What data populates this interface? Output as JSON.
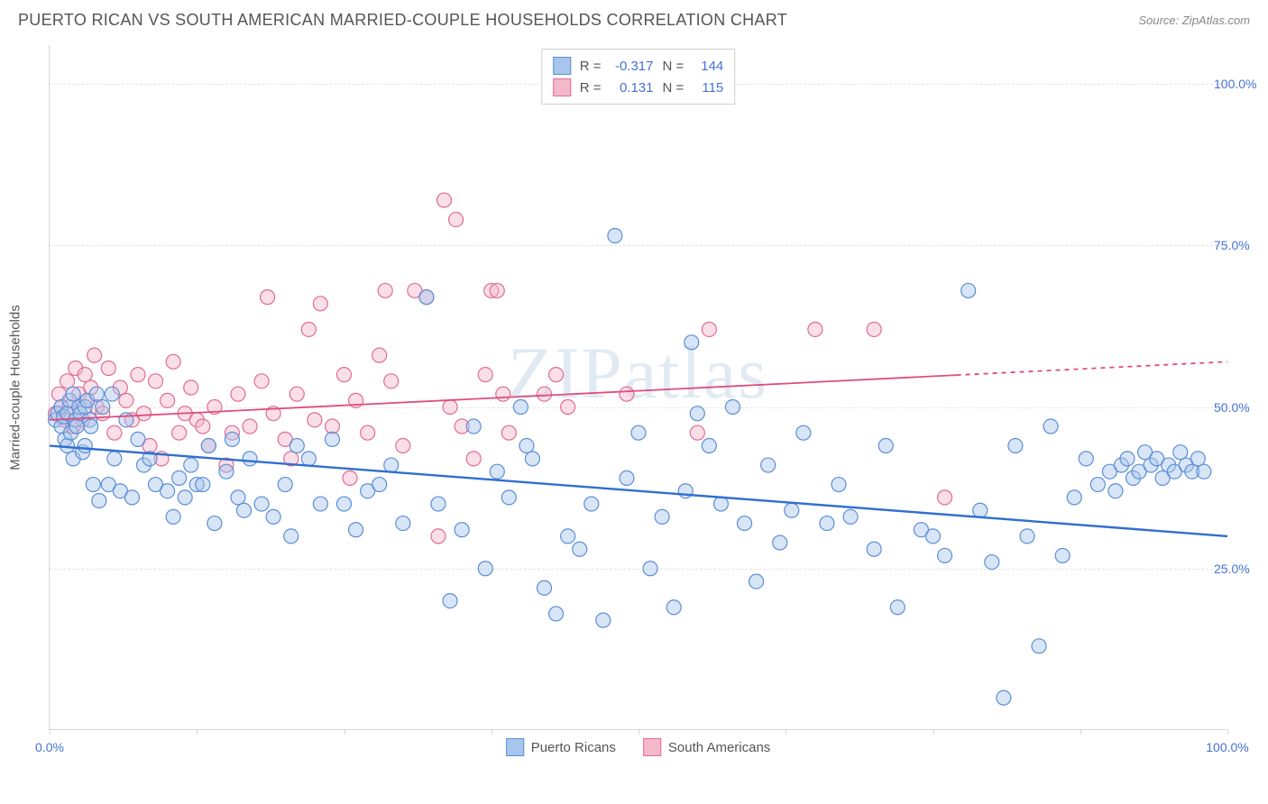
{
  "title": "PUERTO RICAN VS SOUTH AMERICAN MARRIED-COUPLE HOUSEHOLDS CORRELATION CHART",
  "source": "Source: ZipAtlas.com",
  "yaxis_label": "Married-couple Households",
  "watermark": "ZIPatlas",
  "chart": {
    "type": "scatter",
    "xlim": [
      0,
      100
    ],
    "ylim": [
      0,
      106
    ],
    "xtick_positions": [
      0,
      12.5,
      25,
      37.5,
      50,
      62.5,
      75,
      87.5,
      100
    ],
    "xtick_labels": {
      "0": "0.0%",
      "100": "100.0%"
    },
    "ytick_positions": [
      25,
      50,
      75,
      100
    ],
    "ytick_labels": [
      "25.0%",
      "50.0%",
      "75.0%",
      "100.0%"
    ],
    "background_color": "#ffffff",
    "grid_color": "#e4e4e4",
    "axis_color": "#d8d8d8",
    "label_color": "#4472d4",
    "marker_radius": 8,
    "marker_opacity": 0.45,
    "series": [
      {
        "name": "Puerto Ricans",
        "color_fill": "#a8c5ec",
        "color_stroke": "#5b8ed6",
        "r_value": "-0.317",
        "n_value": "144",
        "trend": {
          "y_start": 44,
          "y_end": 30,
          "dash_from_x": null,
          "color": "#2f6fd0",
          "width": 2.4
        },
        "points": [
          [
            0.5,
            48
          ],
          [
            0.7,
            49
          ],
          [
            1,
            50
          ],
          [
            1,
            47
          ],
          [
            1.2,
            48.5
          ],
          [
            1.3,
            45
          ],
          [
            1.5,
            49
          ],
          [
            1.5,
            44
          ],
          [
            1.7,
            51
          ],
          [
            1.8,
            46
          ],
          [
            2,
            52
          ],
          [
            2,
            42
          ],
          [
            2.2,
            48
          ],
          [
            2.3,
            47
          ],
          [
            2.5,
            50
          ],
          [
            2.6,
            49
          ],
          [
            2.8,
            43
          ],
          [
            3,
            50
          ],
          [
            3,
            44
          ],
          [
            3.2,
            51
          ],
          [
            3.4,
            48
          ],
          [
            3.5,
            47
          ],
          [
            3.7,
            38
          ],
          [
            4,
            52
          ],
          [
            4.2,
            35.5
          ],
          [
            4.5,
            50
          ],
          [
            5,
            38
          ],
          [
            5.3,
            52
          ],
          [
            5.5,
            42
          ],
          [
            6,
            37
          ],
          [
            6.5,
            48
          ],
          [
            7,
            36
          ],
          [
            7.5,
            45
          ],
          [
            8,
            41
          ],
          [
            8.5,
            42
          ],
          [
            9,
            38
          ],
          [
            10,
            37
          ],
          [
            10.5,
            33
          ],
          [
            11,
            39
          ],
          [
            11.5,
            36
          ],
          [
            12,
            41
          ],
          [
            12.5,
            38
          ],
          [
            13,
            38
          ],
          [
            13.5,
            44
          ],
          [
            14,
            32
          ],
          [
            15,
            40
          ],
          [
            15.5,
            45
          ],
          [
            16,
            36
          ],
          [
            16.5,
            34
          ],
          [
            17,
            42
          ],
          [
            18,
            35
          ],
          [
            19,
            33
          ],
          [
            20,
            38
          ],
          [
            20.5,
            30
          ],
          [
            21,
            44
          ],
          [
            22,
            42
          ],
          [
            23,
            35
          ],
          [
            24,
            45
          ],
          [
            25,
            35
          ],
          [
            26,
            31
          ],
          [
            27,
            37
          ],
          [
            28,
            38
          ],
          [
            29,
            41
          ],
          [
            30,
            32
          ],
          [
            32,
            67
          ],
          [
            33,
            35
          ],
          [
            34,
            20
          ],
          [
            35,
            31
          ],
          [
            36,
            47
          ],
          [
            37,
            25
          ],
          [
            38,
            40
          ],
          [
            39,
            36
          ],
          [
            40,
            50
          ],
          [
            40.5,
            44
          ],
          [
            41,
            42
          ],
          [
            42,
            22
          ],
          [
            43,
            18
          ],
          [
            44,
            30
          ],
          [
            45,
            28
          ],
          [
            46,
            35
          ],
          [
            47,
            17
          ],
          [
            48,
            76.5
          ],
          [
            49,
            39
          ],
          [
            50,
            46
          ],
          [
            51,
            25
          ],
          [
            52,
            33
          ],
          [
            53,
            19
          ],
          [
            54,
            37
          ],
          [
            54.5,
            60
          ],
          [
            55,
            49
          ],
          [
            56,
            44
          ],
          [
            57,
            35
          ],
          [
            58,
            50
          ],
          [
            59,
            32
          ],
          [
            60,
            23
          ],
          [
            61,
            41
          ],
          [
            62,
            29
          ],
          [
            63,
            34
          ],
          [
            64,
            46
          ],
          [
            66,
            32
          ],
          [
            67,
            38
          ],
          [
            68,
            33
          ],
          [
            70,
            28
          ],
          [
            71,
            44
          ],
          [
            72,
            19
          ],
          [
            74,
            31
          ],
          [
            75,
            30
          ],
          [
            76,
            27
          ],
          [
            78,
            68
          ],
          [
            79,
            34
          ],
          [
            80,
            26
          ],
          [
            81,
            5
          ],
          [
            82,
            44
          ],
          [
            83,
            30
          ],
          [
            84,
            13
          ],
          [
            85,
            47
          ],
          [
            86,
            27
          ],
          [
            87,
            36
          ],
          [
            88,
            42
          ],
          [
            89,
            38
          ],
          [
            90,
            40
          ],
          [
            90.5,
            37
          ],
          [
            91,
            41
          ],
          [
            91.5,
            42
          ],
          [
            92,
            39
          ],
          [
            92.5,
            40
          ],
          [
            93,
            43
          ],
          [
            93.5,
            41
          ],
          [
            94,
            42
          ],
          [
            94.5,
            39
          ],
          [
            95,
            41
          ],
          [
            95.5,
            40
          ],
          [
            96,
            43
          ],
          [
            96.5,
            41
          ],
          [
            97,
            40
          ],
          [
            97.5,
            42
          ],
          [
            98,
            40
          ]
        ]
      },
      {
        "name": "South Americans",
        "color_fill": "#f4b8cb",
        "color_stroke": "#e36a94",
        "r_value": "0.131",
        "n_value": "115",
        "trend": {
          "y_start": 48,
          "y_end": 57,
          "dash_from_x": 77,
          "color": "#e04c7e",
          "width": 1.8
        },
        "points": [
          [
            0.5,
            49
          ],
          [
            0.8,
            52
          ],
          [
            1,
            50
          ],
          [
            1.2,
            48
          ],
          [
            1.5,
            54
          ],
          [
            1.7,
            50
          ],
          [
            2,
            47
          ],
          [
            2.2,
            56
          ],
          [
            2.5,
            52
          ],
          [
            2.8,
            48
          ],
          [
            3,
            55
          ],
          [
            3.2,
            51
          ],
          [
            3.5,
            53
          ],
          [
            3.8,
            58
          ],
          [
            4,
            50
          ],
          [
            4.5,
            49
          ],
          [
            5,
            56
          ],
          [
            5.5,
            46
          ],
          [
            6,
            53
          ],
          [
            6.5,
            51
          ],
          [
            7,
            48
          ],
          [
            7.5,
            55
          ],
          [
            8,
            49
          ],
          [
            8.5,
            44
          ],
          [
            9,
            54
          ],
          [
            9.5,
            42
          ],
          [
            10,
            51
          ],
          [
            10.5,
            57
          ],
          [
            11,
            46
          ],
          [
            11.5,
            49
          ],
          [
            12,
            53
          ],
          [
            12.5,
            48
          ],
          [
            13,
            47
          ],
          [
            13.5,
            44
          ],
          [
            14,
            50
          ],
          [
            15,
            41
          ],
          [
            15.5,
            46
          ],
          [
            16,
            52
          ],
          [
            17,
            47
          ],
          [
            18,
            54
          ],
          [
            18.5,
            67
          ],
          [
            19,
            49
          ],
          [
            20,
            45
          ],
          [
            20.5,
            42
          ],
          [
            21,
            52
          ],
          [
            22,
            62
          ],
          [
            22.5,
            48
          ],
          [
            23,
            66
          ],
          [
            24,
            47
          ],
          [
            25,
            55
          ],
          [
            25.5,
            39
          ],
          [
            26,
            51
          ],
          [
            27,
            46
          ],
          [
            28,
            58
          ],
          [
            28.5,
            68
          ],
          [
            29,
            54
          ],
          [
            30,
            44
          ],
          [
            31,
            68
          ],
          [
            32,
            67
          ],
          [
            33,
            30
          ],
          [
            33.5,
            82
          ],
          [
            34,
            50
          ],
          [
            34.5,
            79
          ],
          [
            35,
            47
          ],
          [
            36,
            42
          ],
          [
            37,
            55
          ],
          [
            37.5,
            68
          ],
          [
            38,
            68
          ],
          [
            38.5,
            52
          ],
          [
            39,
            46
          ],
          [
            42,
            52
          ],
          [
            43,
            55
          ],
          [
            44,
            50
          ],
          [
            49,
            52
          ],
          [
            55,
            46
          ],
          [
            56,
            62
          ],
          [
            65,
            62
          ],
          [
            70,
            62
          ],
          [
            76,
            36
          ]
        ]
      }
    ]
  },
  "legend_labels": {
    "r": "R =",
    "n": "N ="
  }
}
